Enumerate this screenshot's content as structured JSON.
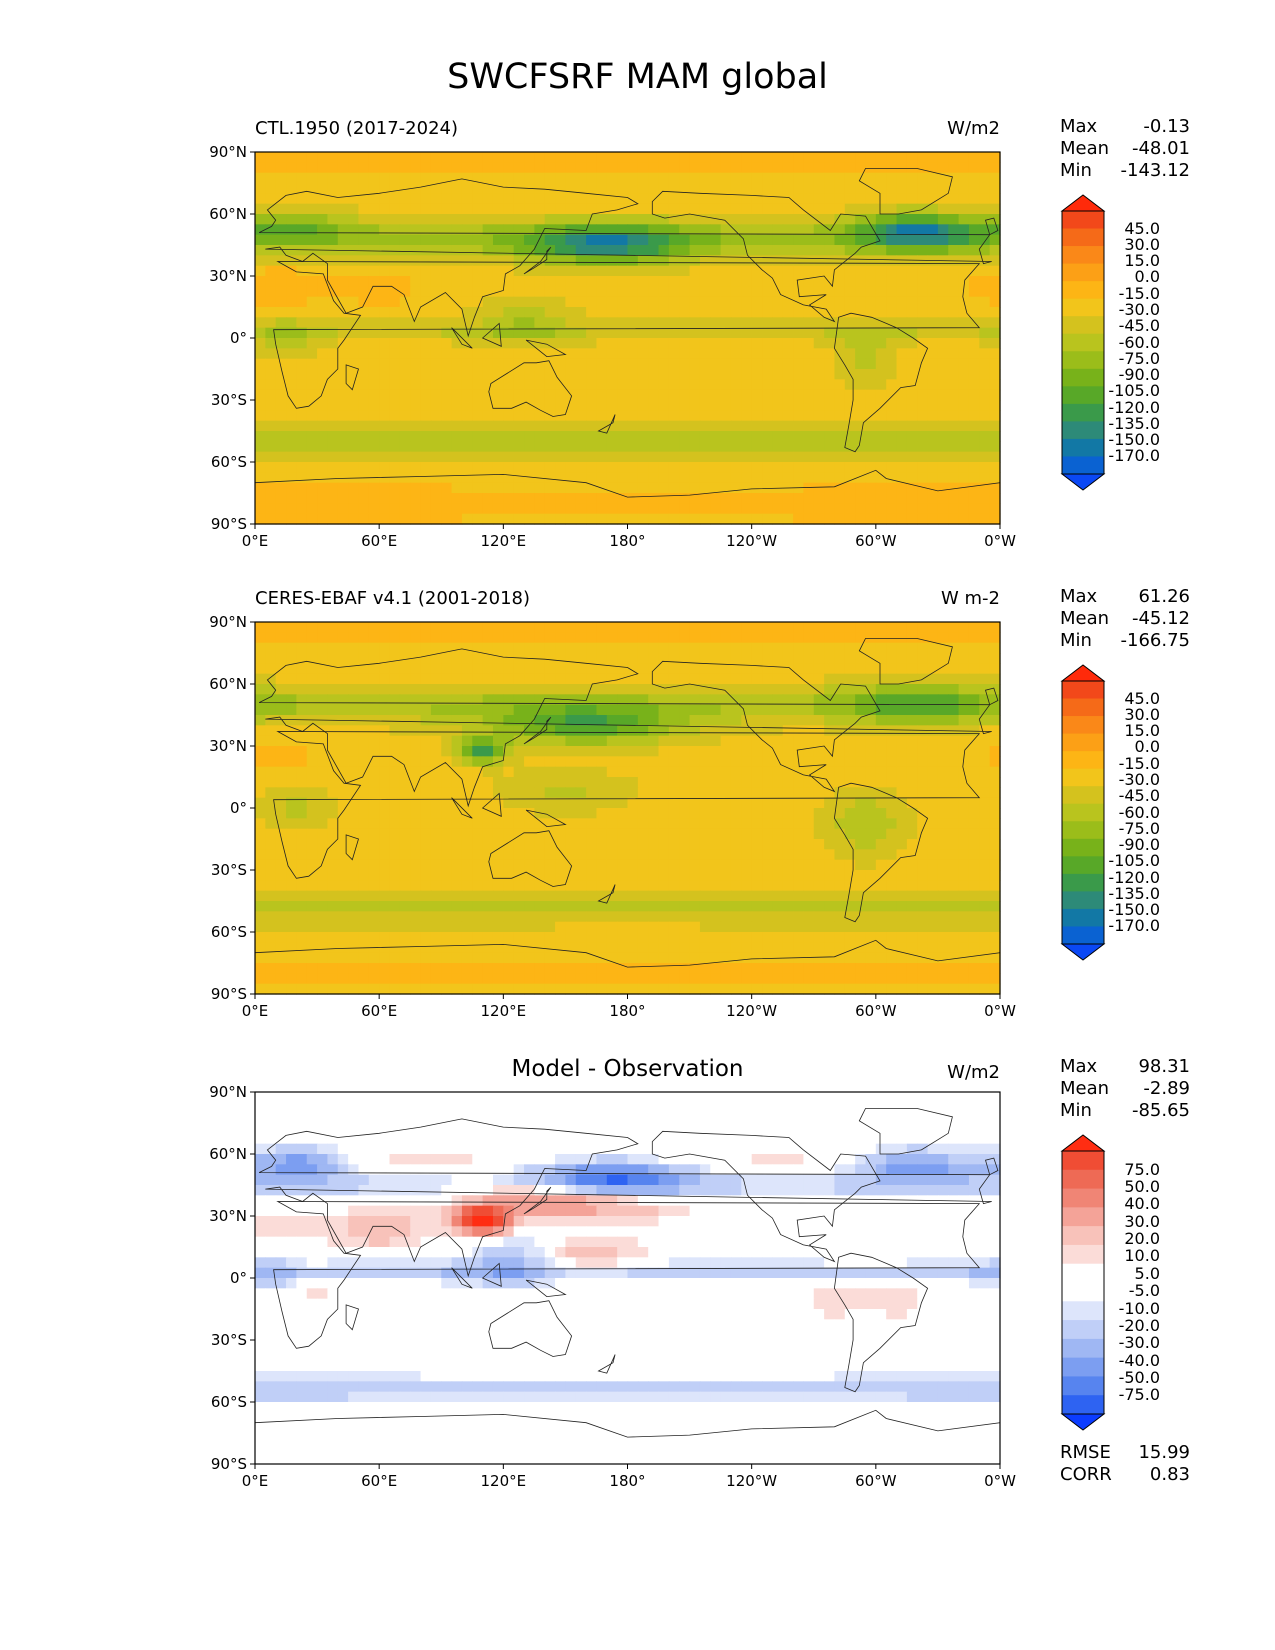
{
  "title": "SWCFSRF MAM global",
  "colors": {
    "abs_scale": [
      "#0a48f5",
      "#0a62d2",
      "#1278a5",
      "#2d8a78",
      "#3a9a4a",
      "#58a828",
      "#78b21a",
      "#9bbd1a",
      "#b9c41e",
      "#d4c21e",
      "#f2c51b",
      "#fdb515",
      "#fca016",
      "#fa8818",
      "#f56a18",
      "#f2481a",
      "#ff2a0a"
    ],
    "diff_scale": [
      "#0b3cff",
      "#2e63f2",
      "#5784ef",
      "#7c9ef1",
      "#9fb7f3",
      "#c0cff7",
      "#dde5fb",
      "#ffffff",
      "#ffffff",
      "#fbdcd8",
      "#f8c2ba",
      "#f4a398",
      "#f08575",
      "#ee6a55",
      "#f04d34",
      "#ff2d12"
    ]
  },
  "lat_ticks": [
    "90°N",
    "60°N",
    "30°N",
    "0°",
    "30°S",
    "60°S",
    "90°S"
  ],
  "lon_ticks": [
    "0°E",
    "60°E",
    "120°E",
    "180°",
    "120°W",
    "60°W",
    "0°W"
  ],
  "panels": [
    {
      "id": "ctl",
      "title": "CTL.1950 (2017-2024)",
      "units": "W/m2",
      "stats": {
        "max_label": "Max",
        "max": "-0.13",
        "mean_label": "Mean",
        "mean": "-48.01",
        "min_label": "Min",
        "min": "-143.12"
      },
      "colorbar_labels": [
        "45.0",
        "30.0",
        "15.0",
        "0.0",
        "-15.0",
        "-30.0",
        "-45.0",
        "-60.0",
        "-75.0",
        "-90.0",
        "-105.0",
        "-120.0",
        "-135.0",
        "-150.0",
        "-170.0"
      ]
    },
    {
      "id": "obs",
      "title": "CERES-EBAF v4.1 (2001-2018)",
      "units": "W m-2",
      "stats": {
        "max_label": "Max",
        "max": "61.26",
        "mean_label": "Mean",
        "mean": "-45.12",
        "min_label": "Min",
        "min": "-166.75"
      },
      "colorbar_labels": [
        "45.0",
        "30.0",
        "15.0",
        "0.0",
        "-15.0",
        "-30.0",
        "-45.0",
        "-60.0",
        "-75.0",
        "-90.0",
        "-105.0",
        "-120.0",
        "-135.0",
        "-150.0",
        "-170.0"
      ]
    },
    {
      "id": "diff",
      "title": "Model - Observation",
      "units": "W/m2",
      "stats": {
        "max_label": "Max",
        "max": "98.31",
        "mean_label": "Mean",
        "mean": "-2.89",
        "min_label": "Min",
        "min": "-85.65"
      },
      "colorbar_labels": [
        "75.0",
        "50.0",
        "40.0",
        "30.0",
        "20.0",
        "10.0",
        "5.0",
        "-5.0",
        "-10.0",
        "-20.0",
        "-30.0",
        "-40.0",
        "-50.0",
        "-75.0"
      ],
      "extra_stats": {
        "rmse_label": "RMSE",
        "rmse": "15.99",
        "corr_label": "CORR",
        "corr": "0.83"
      }
    }
  ]
}
